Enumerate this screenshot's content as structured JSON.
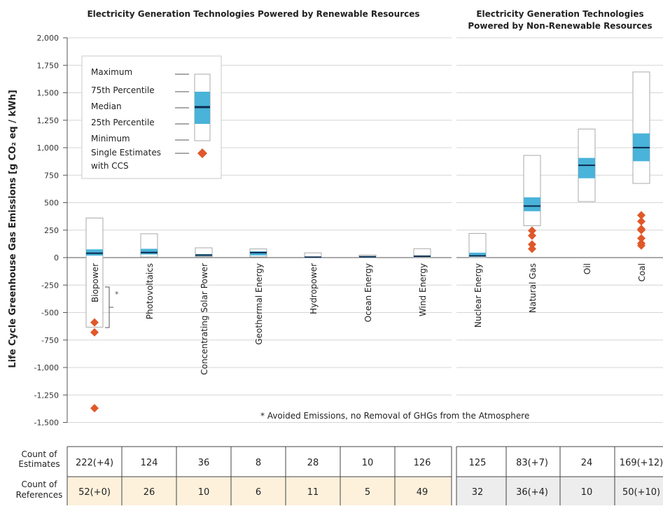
{
  "chart_data": {
    "type": "box",
    "header_renewable": "Electricity Generation Technologies Powered by Renewable Resources",
    "header_nonrenewable": [
      "Electricity Generation Technologies",
      "Powered by Non-Renewable Resources"
    ],
    "ylabel": "Life Cycle Greenhouse Gas Emissions [g CO₂ eq / kWh]",
    "ylim": [
      -1500,
      2000
    ],
    "yticks": [
      "2,000",
      "1,750",
      "1,500",
      "1,250",
      "1,000",
      "750",
      "500",
      "250",
      "0",
      "-250",
      "-500",
      "-750",
      "-1,000",
      "-1,250",
      "-1,500"
    ],
    "ytick_values": [
      2000,
      1750,
      1500,
      1250,
      1000,
      750,
      500,
      250,
      0,
      -250,
      -500,
      -750,
      -1000,
      -1250,
      -1500
    ],
    "legend": {
      "max": "Maximum",
      "p75": "75th Percentile",
      "median": "Median",
      "p25": "25th Percentile",
      "min": "Minimum",
      "single": [
        "Single Estimates",
        "with CCS"
      ]
    },
    "annotation": "* Avoided Emissions, no Removal of GHGs from the Atmosphere",
    "categories": [
      {
        "name": "Biopower",
        "group": "renewable",
        "min": -633,
        "p25": 18,
        "median": 40,
        "p75": 75,
        "max": 360,
        "ccs": [
          -590,
          -680,
          -1370
        ]
      },
      {
        "name": "Photovoltaics",
        "group": "renewable",
        "min": 5,
        "p25": 29,
        "median": 46,
        "p75": 80,
        "max": 217,
        "ccs": []
      },
      {
        "name": "Concentrating Solar Power",
        "group": "renewable",
        "min": 9,
        "p25": 14,
        "median": 22,
        "p75": 32,
        "max": 89,
        "ccs": []
      },
      {
        "name": "Geothermal Energy",
        "group": "renewable",
        "min": 6,
        "p25": 20,
        "median": 45,
        "p75": 57,
        "max": 79,
        "ccs": []
      },
      {
        "name": "Hydropower",
        "group": "renewable",
        "min": 0,
        "p25": 3,
        "median": 4,
        "p75": 7,
        "max": 43,
        "ccs": []
      },
      {
        "name": "Ocean Energy",
        "group": "renewable",
        "min": 2,
        "p25": 6,
        "median": 8,
        "p75": 9,
        "max": 23,
        "ccs": []
      },
      {
        "name": "Wind Energy",
        "group": "renewable",
        "min": 2,
        "p25": 8,
        "median": 12,
        "p75": 20,
        "max": 81,
        "ccs": []
      },
      {
        "name": "Nuclear Energy",
        "group": "nonrenewable",
        "min": 1,
        "p25": 8,
        "median": 16,
        "p75": 45,
        "max": 220,
        "ccs": []
      },
      {
        "name": "Natural Gas",
        "group": "nonrenewable",
        "min": 290,
        "p25": 422,
        "median": 469,
        "p75": 548,
        "max": 930,
        "ccs": [
          245,
          200,
          120,
          80
        ]
      },
      {
        "name": "Oil",
        "group": "nonrenewable",
        "min": 510,
        "p25": 722,
        "median": 840,
        "p75": 907,
        "max": 1170,
        "ccs": []
      },
      {
        "name": "Coal",
        "group": "nonrenewable",
        "min": 675,
        "p25": 877,
        "median": 1001,
        "p75": 1130,
        "max": 1689,
        "ccs": [
          385,
          330,
          260,
          250,
          175,
          130,
          110
        ]
      }
    ],
    "table": {
      "row1_label": [
        "Count of",
        "Estimates"
      ],
      "row2_label": [
        "Count of",
        "References"
      ],
      "estimates": [
        "222(+4)",
        "124",
        "36",
        "8",
        "28",
        "10",
        "126",
        "125",
        "83(+7)",
        "24",
        "169(+12)"
      ],
      "references": [
        "52(+0)",
        "26",
        "10",
        "6",
        "11",
        "5",
        "49",
        "32",
        "36(+4)",
        "10",
        "50(+10)"
      ]
    },
    "colors": {
      "iqr": "#4ab3d9",
      "median": "#0d2b4d",
      "ccs": "#e0582a",
      "renewable_ref_bg": "#fdf1dc",
      "nonrenewable_ref_bg": "#ededed",
      "grid": "#d6d6d6"
    }
  }
}
